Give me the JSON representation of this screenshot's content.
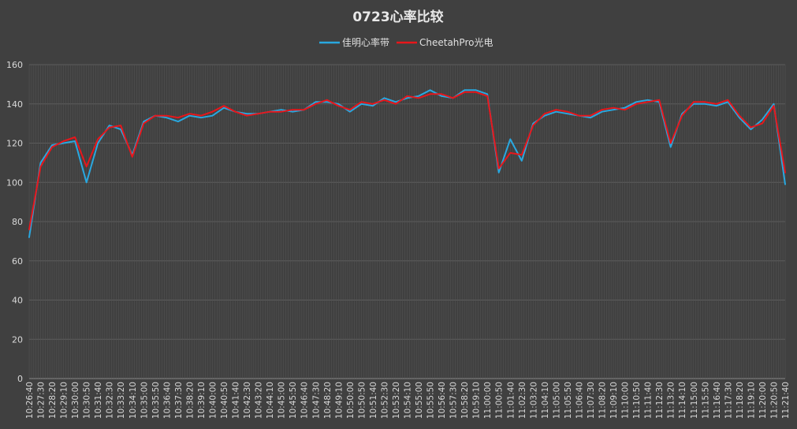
{
  "chart_data": {
    "type": "line",
    "title": "0723心率比较",
    "xlabel": "",
    "ylabel": "",
    "ylim": [
      0,
      160
    ],
    "yticks": [
      0,
      20,
      40,
      60,
      80,
      100,
      120,
      140,
      160
    ],
    "grid": true,
    "legend_position": "top",
    "x_tick_labels": [
      "10:26:40",
      "10:27:30",
      "10:28:20",
      "10:29:10",
      "10:30:00",
      "10:30:50",
      "10:31:40",
      "10:32:30",
      "10:33:20",
      "10:34:10",
      "10:35:00",
      "10:35:50",
      "10:36:40",
      "10:37:30",
      "10:38:20",
      "10:39:10",
      "10:40:00",
      "10:40:50",
      "10:41:40",
      "10:42:30",
      "10:43:20",
      "10:44:10",
      "10:45:00",
      "10:45:50",
      "10:46:40",
      "10:47:30",
      "10:48:20",
      "10:49:10",
      "10:50:00",
      "10:50:50",
      "10:51:40",
      "10:52:30",
      "10:53:20",
      "10:54:10",
      "10:55:00",
      "10:55:50",
      "10:56:40",
      "10:57:30",
      "10:58:20",
      "10:59:10",
      "11:00:00",
      "11:00:50",
      "11:01:40",
      "11:02:30",
      "11:03:20",
      "11:04:10",
      "11:05:00",
      "11:05:50",
      "11:06:40",
      "11:07:30",
      "11:08:20",
      "11:09:10",
      "11:10:00",
      "11:10:50",
      "11:11:40",
      "11:12:30",
      "11:13:20",
      "11:14:10",
      "11:15:00",
      "11:15:50",
      "11:16:40",
      "11:17:30",
      "11:18:20",
      "11:19:10",
      "11:20:00",
      "11:20:50",
      "11:21:40"
    ],
    "series": [
      {
        "name": "佳明心率带",
        "color": "#29A8E0",
        "values": [
          72,
          110,
          119,
          120,
          121,
          100,
          120,
          129,
          127,
          114,
          131,
          134,
          133,
          131,
          134,
          133,
          134,
          138,
          136,
          135,
          135,
          136,
          137,
          136,
          137,
          141,
          141,
          140,
          136,
          140,
          139,
          143,
          141,
          143,
          144,
          147,
          144,
          143,
          147,
          147,
          145,
          105,
          122,
          111,
          130,
          134,
          136,
          135,
          134,
          133,
          136,
          137,
          138,
          141,
          142,
          141,
          118,
          135,
          140,
          140,
          139,
          141,
          133,
          127,
          132,
          140,
          99
        ]
      },
      {
        "name": "CheetahPro光电",
        "color": "#E8161B",
        "values": [
          76,
          108,
          118,
          121,
          123,
          108,
          122,
          128,
          129,
          113,
          130,
          134,
          134,
          133,
          135,
          134,
          136,
          139,
          136,
          134,
          135,
          136,
          136,
          137,
          137,
          140,
          142,
          139,
          137,
          141,
          140,
          142,
          140,
          144,
          143,
          145,
          145,
          143,
          146,
          146,
          144,
          107,
          115,
          114,
          129,
          135,
          137,
          136,
          134,
          134,
          137,
          138,
          137,
          140,
          141,
          142,
          120,
          134,
          141,
          141,
          140,
          142,
          134,
          128,
          130,
          139,
          105
        ]
      }
    ]
  }
}
